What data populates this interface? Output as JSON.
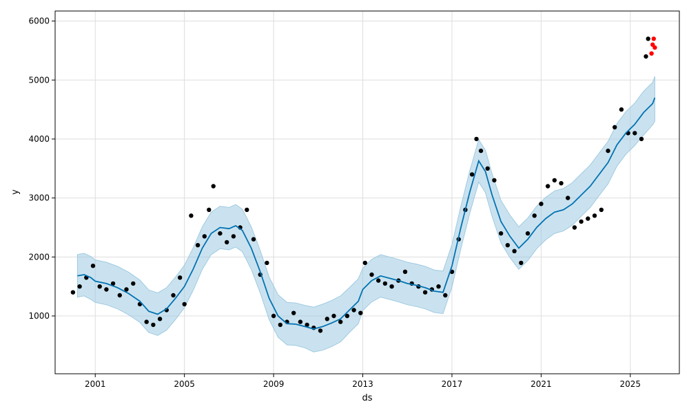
{
  "chart_data": {
    "type": "line",
    "title": "",
    "xlabel": "ds",
    "ylabel": "y",
    "xlim": [
      1999.2,
      2027.2
    ],
    "ylim": [
      20,
      6170
    ],
    "grid": true,
    "x_ticks": [
      2001,
      2005,
      2009,
      2013,
      2017,
      2021,
      2025
    ],
    "x_tick_labels": [
      "2001",
      "2005",
      "2009",
      "2013",
      "2017",
      "2021",
      "2025"
    ],
    "y_ticks": [
      1000,
      2000,
      3000,
      4000,
      5000,
      6000
    ],
    "y_tick_labels": [
      "1000",
      "2000",
      "3000",
      "4000",
      "5000",
      "6000"
    ],
    "colors": {
      "observed": "#000000",
      "test": "#ff0000",
      "forecast": "#0072b2",
      "interval": "#9ecae1",
      "grid": "#dddddd"
    },
    "series": [
      {
        "kind": "forecast",
        "x": [
          2000.2,
          2000.5,
          2000.8,
          2001.0,
          2001.5,
          2002.0,
          2002.5,
          2003.0,
          2003.4,
          2003.8,
          2004.2,
          2004.6,
          2005.0,
          2005.4,
          2005.8,
          2006.2,
          2006.6,
          2007.0,
          2007.3,
          2007.6,
          2008.0,
          2008.4,
          2008.8,
          2009.2,
          2009.6,
          2010.0,
          2010.4,
          2010.8,
          2011.2,
          2011.6,
          2012.0,
          2012.4,
          2012.8,
          2013.0,
          2013.4,
          2013.8,
          2014.2,
          2014.6,
          2015.0,
          2015.4,
          2015.8,
          2016.2,
          2016.6,
          2017.0,
          2017.4,
          2017.8,
          2018.2,
          2018.5,
          2018.8,
          2019.2,
          2019.6,
          2020.0,
          2020.4,
          2020.8,
          2021.2,
          2021.6,
          2022.0,
          2022.4,
          2022.8,
          2023.2,
          2023.6,
          2024.0,
          2024.4,
          2024.8,
          2025.2,
          2025.6,
          2026.0,
          2026.1
        ],
        "yhat": [
          1680,
          1700,
          1650,
          1590,
          1550,
          1480,
          1380,
          1250,
          1080,
          1030,
          1120,
          1300,
          1500,
          1800,
          2150,
          2400,
          2500,
          2480,
          2530,
          2450,
          2150,
          1750,
          1300,
          1000,
          870,
          860,
          820,
          780,
          820,
          880,
          950,
          1100,
          1250,
          1450,
          1600,
          1680,
          1640,
          1600,
          1550,
          1520,
          1480,
          1420,
          1400,
          1850,
          2500,
          3100,
          3630,
          3450,
          3050,
          2600,
          2350,
          2150,
          2300,
          2500,
          2650,
          2760,
          2800,
          2900,
          3050,
          3200,
          3400,
          3600,
          3900,
          4100,
          4250,
          4450,
          4600,
          4700
        ],
        "lower": [
          1320,
          1340,
          1280,
          1230,
          1190,
          1120,
          1020,
          890,
          720,
          670,
          760,
          940,
          1140,
          1440,
          1790,
          2040,
          2140,
          2120,
          2170,
          2090,
          1790,
          1390,
          940,
          640,
          510,
          500,
          460,
          390,
          420,
          480,
          560,
          720,
          870,
          1090,
          1240,
          1320,
          1280,
          1240,
          1190,
          1160,
          1120,
          1060,
          1040,
          1490,
          2140,
          2740,
          3270,
          3090,
          2690,
          2240,
          1990,
          1790,
          1940,
          2140,
          2290,
          2400,
          2440,
          2540,
          2690,
          2840,
          3040,
          3240,
          3540,
          3740,
          3890,
          4070,
          4240,
          4300
        ],
        "upper": [
          2040,
          2060,
          2010,
          1950,
          1910,
          1840,
          1740,
          1610,
          1440,
          1390,
          1480,
          1660,
          1860,
          2160,
          2510,
          2760,
          2860,
          2840,
          2890,
          2810,
          2510,
          2110,
          1660,
          1360,
          1230,
          1220,
          1180,
          1150,
          1200,
          1260,
          1340,
          1480,
          1630,
          1810,
          1960,
          2040,
          2000,
          1960,
          1910,
          1880,
          1840,
          1780,
          1760,
          2210,
          2860,
          3460,
          3990,
          3810,
          3410,
          2960,
          2710,
          2510,
          2660,
          2860,
          3010,
          3120,
          3160,
          3260,
          3410,
          3560,
          3760,
          3960,
          4260,
          4460,
          4610,
          4810,
          4960,
          5060
        ]
      },
      {
        "kind": "observed",
        "x": [
          2000.0,
          2000.3,
          2000.6,
          2000.9,
          2001.2,
          2001.5,
          2001.8,
          2002.1,
          2002.4,
          2002.7,
          2003.0,
          2003.3,
          2003.6,
          2003.9,
          2004.2,
          2004.5,
          2004.8,
          2005.0,
          2005.3,
          2005.6,
          2005.9,
          2006.1,
          2006.3,
          2006.6,
          2006.9,
          2007.2,
          2007.5,
          2007.8,
          2008.1,
          2008.4,
          2008.7,
          2009.0,
          2009.3,
          2009.6,
          2009.9,
          2010.2,
          2010.5,
          2010.8,
          2011.1,
          2011.4,
          2011.7,
          2012.0,
          2012.3,
          2012.6,
          2012.9,
          2013.1,
          2013.4,
          2013.7,
          2014.0,
          2014.3,
          2014.6,
          2014.9,
          2015.2,
          2015.5,
          2015.8,
          2016.1,
          2016.4,
          2016.7,
          2017.0,
          2017.3,
          2017.6,
          2017.9,
          2018.1,
          2018.3,
          2018.6,
          2018.9,
          2019.2,
          2019.5,
          2019.8,
          2020.1,
          2020.4,
          2020.7,
          2021.0,
          2021.3,
          2021.6,
          2021.9,
          2022.2,
          2022.5,
          2022.8,
          2023.1,
          2023.4,
          2023.7,
          2024.0,
          2024.3,
          2024.6,
          2024.9,
          2025.2,
          2025.5,
          2025.7,
          2025.8
        ],
        "y": [
          1400,
          1500,
          1650,
          1850,
          1500,
          1450,
          1550,
          1350,
          1450,
          1550,
          1200,
          900,
          850,
          950,
          1100,
          1350,
          1650,
          1200,
          2700,
          2200,
          2350,
          2800,
          3200,
          2400,
          2250,
          2350,
          2500,
          2800,
          2300,
          1700,
          1900,
          1000,
          850,
          900,
          1050,
          900,
          850,
          800,
          750,
          950,
          1000,
          900,
          1000,
          1100,
          1050,
          1900,
          1700,
          1600,
          1550,
          1500,
          1600,
          1750,
          1550,
          1500,
          1400,
          1450,
          1500,
          1350,
          1750,
          2300,
          2800,
          3400,
          4000,
          3800,
          3500,
          3300,
          2400,
          2200,
          2100,
          1900,
          2400,
          2700,
          2900,
          3200,
          3300,
          3250,
          3000,
          2500,
          2600,
          2650,
          2700,
          2800,
          3800,
          4200,
          4500,
          4100,
          4100,
          4000,
          5400,
          5700
        ]
      },
      {
        "kind": "test",
        "x": [
          2025.95,
          2026.0,
          2026.05,
          2026.1
        ],
        "y": [
          5450,
          5600,
          5700,
          5550
        ]
      }
    ]
  }
}
